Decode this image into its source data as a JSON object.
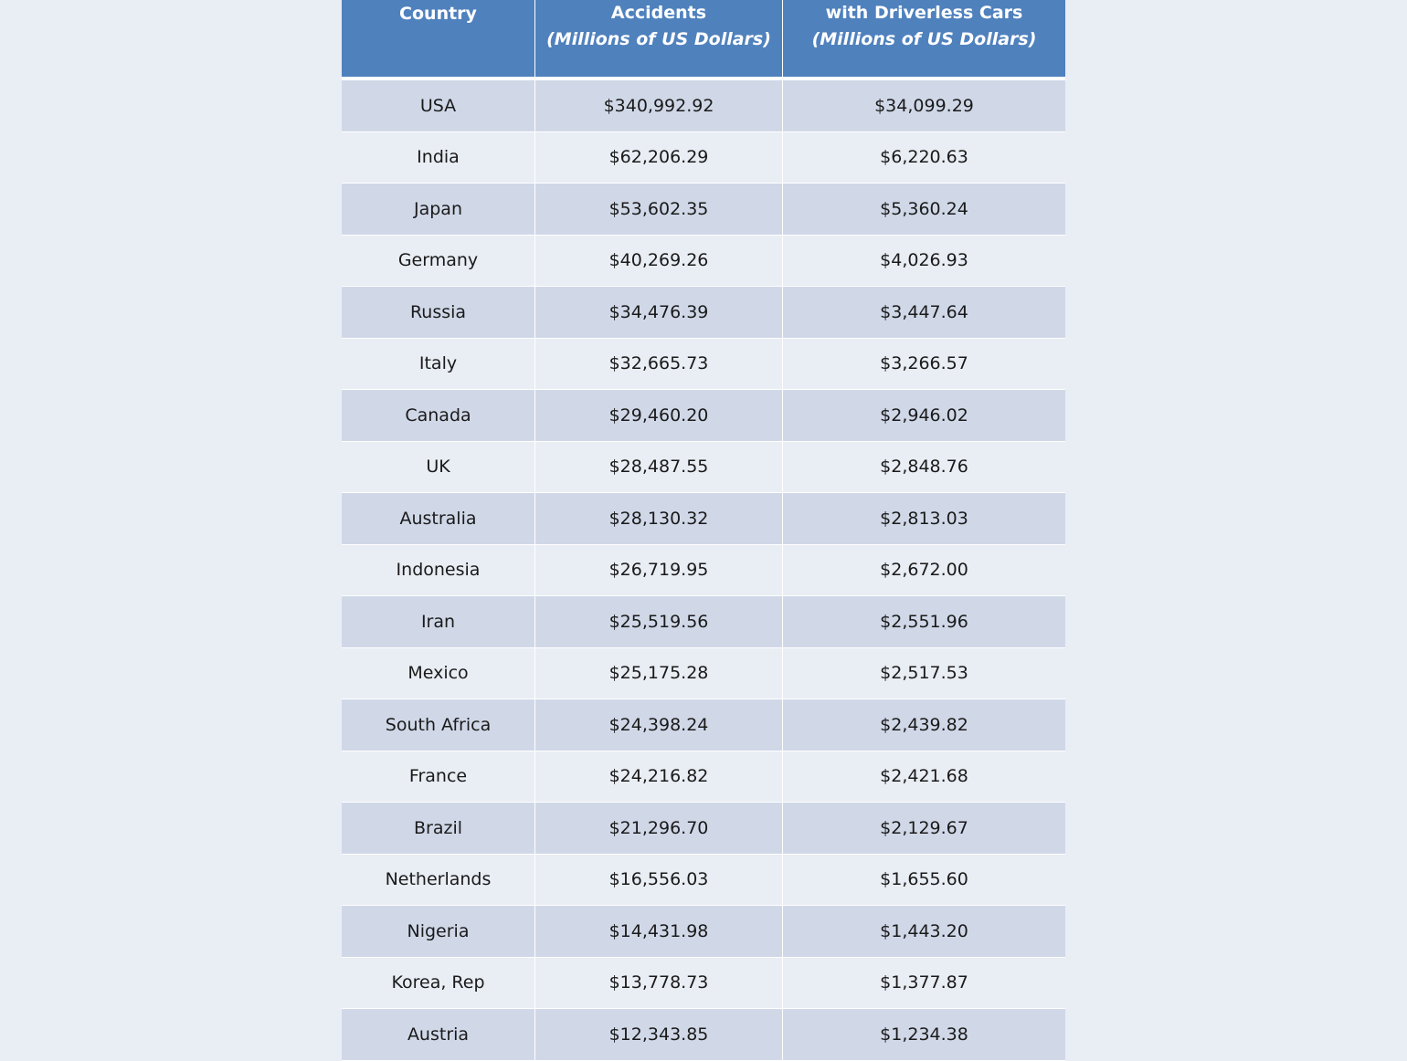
{
  "chart_data": {
    "type": "table",
    "columns": [
      {
        "line1": "Country",
        "line2": ""
      },
      {
        "line1": "Accidents",
        "line2": "(Millions of US Dollars)"
      },
      {
        "line1": "with Driverless Cars",
        "line2": "(Millions of US Dollars)"
      }
    ],
    "rows": [
      [
        "USA",
        "$340,992.92",
        "$34,099.29"
      ],
      [
        "India",
        "$62,206.29",
        "$6,220.63"
      ],
      [
        "Japan",
        "$53,602.35",
        "$5,360.24"
      ],
      [
        "Germany",
        "$40,269.26",
        "$4,026.93"
      ],
      [
        "Russia",
        "$34,476.39",
        "$3,447.64"
      ],
      [
        "Italy",
        "$32,665.73",
        "$3,266.57"
      ],
      [
        "Canada",
        "$29,460.20",
        "$2,946.02"
      ],
      [
        "UK",
        "$28,487.55",
        "$2,848.76"
      ],
      [
        "Australia",
        "$28,130.32",
        "$2,813.03"
      ],
      [
        "Indonesia",
        "$26,719.95",
        "$2,672.00"
      ],
      [
        "Iran",
        "$25,519.56",
        "$2,551.96"
      ],
      [
        "Mexico",
        "$25,175.28",
        "$2,517.53"
      ],
      [
        "South Africa",
        "$24,398.24",
        "$2,439.82"
      ],
      [
        "France",
        "$24,216.82",
        "$2,421.68"
      ],
      [
        "Brazil",
        "$21,296.70",
        "$2,129.67"
      ],
      [
        "Netherlands",
        "$16,556.03",
        "$1,655.60"
      ],
      [
        "Nigeria",
        "$14,431.98",
        "$1,443.20"
      ],
      [
        "Korea, Rep",
        "$13,778.73",
        "$1,377.87"
      ],
      [
        "Austria",
        "$12,343.85",
        "$1,234.38"
      ]
    ]
  },
  "colors": {
    "header_bg": "#4f81bd",
    "row_odd": "#d0d8e8",
    "row_even": "#e9edf4"
  }
}
